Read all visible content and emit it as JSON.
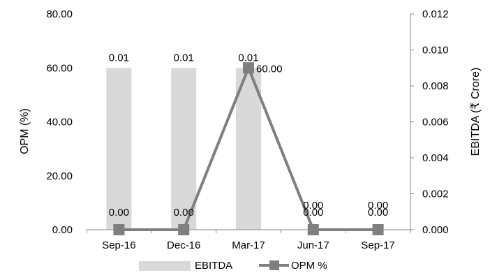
{
  "chart_data": {
    "type": "bar",
    "categories": [
      "Sep-16",
      "Dec-16",
      "Mar-17",
      "Jun-17",
      "Sep-17"
    ],
    "series": [
      {
        "name": "EBITDA",
        "type": "bar",
        "axis": "right",
        "values": [
          0.009,
          0.009,
          0.009,
          0,
          0
        ],
        "labels": [
          "0.01",
          "0.01",
          "0.01",
          "0.00",
          "0.00"
        ],
        "color": "#d9d9d9"
      },
      {
        "name": "OPM %",
        "type": "line",
        "axis": "left",
        "values": [
          0,
          0,
          60,
          0,
          0
        ],
        "labels": [
          "0.00",
          "0.00",
          "60.00",
          "0.00",
          "0.00"
        ],
        "color": "#7f7f7f"
      }
    ],
    "ylabel": "OPM (%)",
    "y2label": "EBITDA (₹ Crore)",
    "ylim": [
      0,
      80
    ],
    "y2lim": [
      0,
      0.012
    ],
    "yticks": [
      "0.00",
      "20.00",
      "40.00",
      "60.00",
      "80.00"
    ],
    "y2ticks": [
      "0.000",
      "0.002",
      "0.004",
      "0.006",
      "0.008",
      "0.010",
      "0.012"
    ],
    "grid": false,
    "legend": "bottom"
  }
}
